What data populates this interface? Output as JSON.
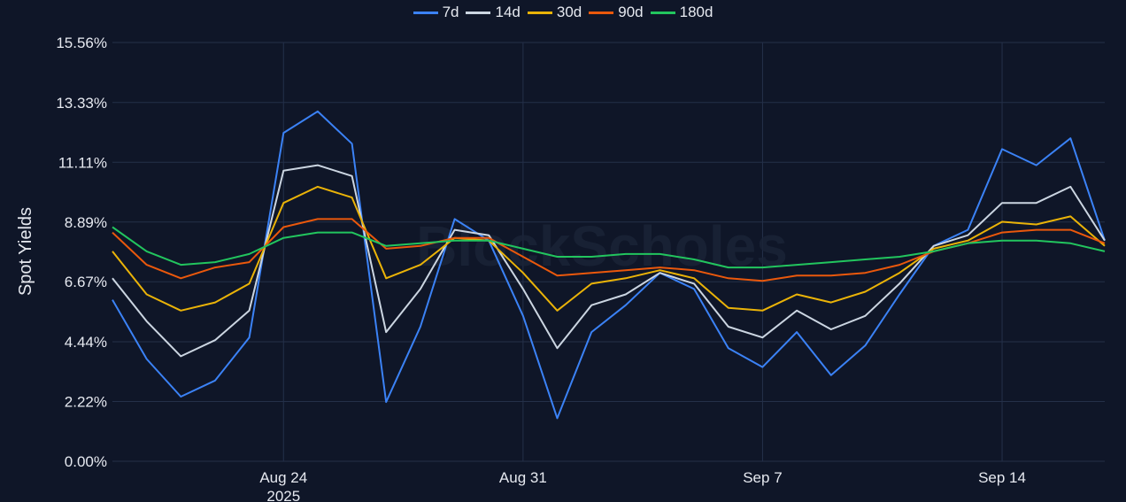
{
  "chart_data": {
    "type": "line",
    "ylabel": "Spot Yields",
    "watermark": "BlockScholes",
    "y_ticks": [
      "0.00%",
      "2.22%",
      "4.44%",
      "6.67%",
      "8.89%",
      "11.11%",
      "13.33%",
      "15.56%"
    ],
    "ylim": [
      0,
      15.56
    ],
    "x_ticks": [
      {
        "date": "2025-08-24",
        "label": "Aug 24",
        "sublabel": "2025"
      },
      {
        "date": "2025-08-31",
        "label": "Aug 31",
        "sublabel": ""
      },
      {
        "date": "2025-09-07",
        "label": "Sep 7",
        "sublabel": ""
      },
      {
        "date": "2025-09-14",
        "label": "Sep 14",
        "sublabel": ""
      }
    ],
    "x_range": [
      "2025-08-19",
      "2025-09-17"
    ],
    "grid": true,
    "legend_position": "top-center",
    "x": [
      "2025-08-19",
      "2025-08-20",
      "2025-08-21",
      "2025-08-22",
      "2025-08-23",
      "2025-08-24",
      "2025-08-25",
      "2025-08-26",
      "2025-08-27",
      "2025-08-28",
      "2025-08-29",
      "2025-08-30",
      "2025-08-31",
      "2025-09-01",
      "2025-09-02",
      "2025-09-03",
      "2025-09-04",
      "2025-09-05",
      "2025-09-06",
      "2025-09-07",
      "2025-09-08",
      "2025-09-09",
      "2025-09-10",
      "2025-09-11",
      "2025-09-12",
      "2025-09-13",
      "2025-09-14",
      "2025-09-15",
      "2025-09-16",
      "2025-09-17"
    ],
    "series": [
      {
        "name": "7d",
        "color": "#3b82f6",
        "values": [
          6.0,
          3.8,
          2.4,
          3.0,
          4.6,
          12.2,
          13.0,
          11.8,
          2.2,
          5.0,
          9.0,
          8.2,
          5.4,
          1.6,
          4.8,
          5.8,
          7.0,
          6.4,
          4.2,
          3.5,
          4.8,
          3.2,
          4.3,
          6.2,
          8.0,
          8.6,
          11.6,
          11.0,
          12.0,
          8.2
        ]
      },
      {
        "name": "14d",
        "color": "#cbd5e1",
        "values": [
          6.8,
          5.2,
          3.9,
          4.5,
          5.6,
          10.8,
          11.0,
          10.6,
          4.8,
          6.4,
          8.6,
          8.4,
          6.4,
          4.2,
          5.8,
          6.2,
          7.0,
          6.6,
          5.0,
          4.6,
          5.6,
          4.9,
          5.4,
          6.6,
          8.0,
          8.4,
          9.6,
          9.6,
          10.2,
          8.2
        ]
      },
      {
        "name": "30d",
        "color": "#eab308",
        "values": [
          7.8,
          6.2,
          5.6,
          5.9,
          6.6,
          9.6,
          10.2,
          9.8,
          6.8,
          7.3,
          8.3,
          8.2,
          7.0,
          5.6,
          6.6,
          6.8,
          7.1,
          6.8,
          5.7,
          5.6,
          6.2,
          5.9,
          6.3,
          7.0,
          7.9,
          8.2,
          8.9,
          8.8,
          9.1,
          8.0
        ]
      },
      {
        "name": "90d",
        "color": "#ea580c",
        "values": [
          8.5,
          7.3,
          6.8,
          7.2,
          7.4,
          8.7,
          9.0,
          9.0,
          7.9,
          8.0,
          8.3,
          8.3,
          7.6,
          6.9,
          7.0,
          7.1,
          7.2,
          7.1,
          6.8,
          6.7,
          6.9,
          6.9,
          7.0,
          7.3,
          7.8,
          8.1,
          8.5,
          8.6,
          8.6,
          8.1
        ]
      },
      {
        "name": "180d",
        "color": "#22c55e",
        "values": [
          8.7,
          7.8,
          7.3,
          7.4,
          7.7,
          8.3,
          8.5,
          8.5,
          8.0,
          8.1,
          8.2,
          8.2,
          7.9,
          7.6,
          7.6,
          7.7,
          7.7,
          7.5,
          7.2,
          7.2,
          7.3,
          7.4,
          7.5,
          7.6,
          7.8,
          8.1,
          8.2,
          8.2,
          8.1,
          7.8
        ]
      }
    ]
  }
}
